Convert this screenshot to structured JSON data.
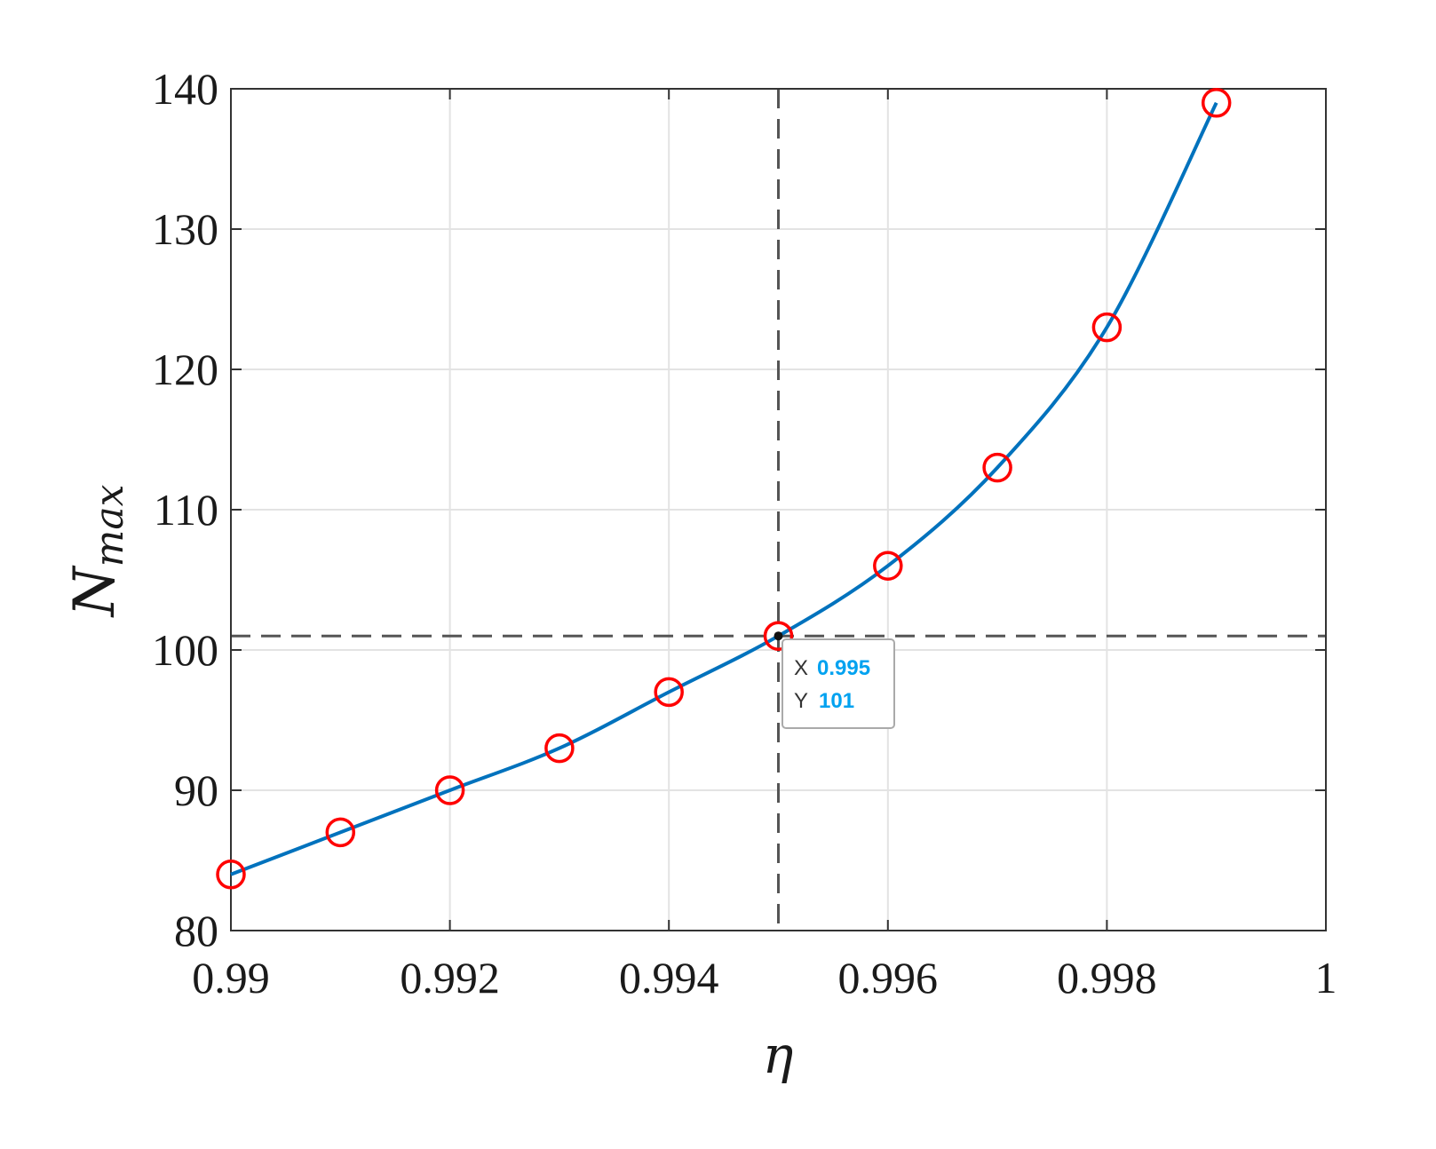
{
  "chart_data": {
    "type": "line",
    "title": "",
    "xlabel": "η",
    "ylabel": {
      "main": "N",
      "subscript": "max"
    },
    "xlim": [
      0.99,
      1.0
    ],
    "ylim": [
      80,
      140
    ],
    "x_ticks": [
      0.99,
      0.992,
      0.994,
      0.996,
      0.998,
      1
    ],
    "x_tick_labels": [
      "0.99",
      "0.992",
      "0.994",
      "0.996",
      "0.998",
      "1"
    ],
    "y_ticks": [
      80,
      90,
      100,
      110,
      120,
      130,
      140
    ],
    "y_tick_labels": [
      "80",
      "90",
      "100",
      "110",
      "120",
      "130",
      "140"
    ],
    "grid": true,
    "series": [
      {
        "x": [
          0.99,
          0.991,
          0.992,
          0.993,
          0.994,
          0.995,
          0.996,
          0.997,
          0.998,
          0.999
        ],
        "y": [
          84,
          87,
          90,
          93,
          97,
          101,
          106,
          113,
          123,
          139
        ],
        "line_color": "#0072BD",
        "marker": "circle",
        "marker_color": "#FF0000"
      }
    ],
    "reference_lines": {
      "x": 0.995,
      "y": 101,
      "style": "dashed",
      "color": "#555555"
    },
    "datatip": {
      "x_key": "X",
      "x_value": "0.995",
      "y_key": "Y",
      "y_value": "101",
      "value_color": "#00A2F0"
    }
  }
}
